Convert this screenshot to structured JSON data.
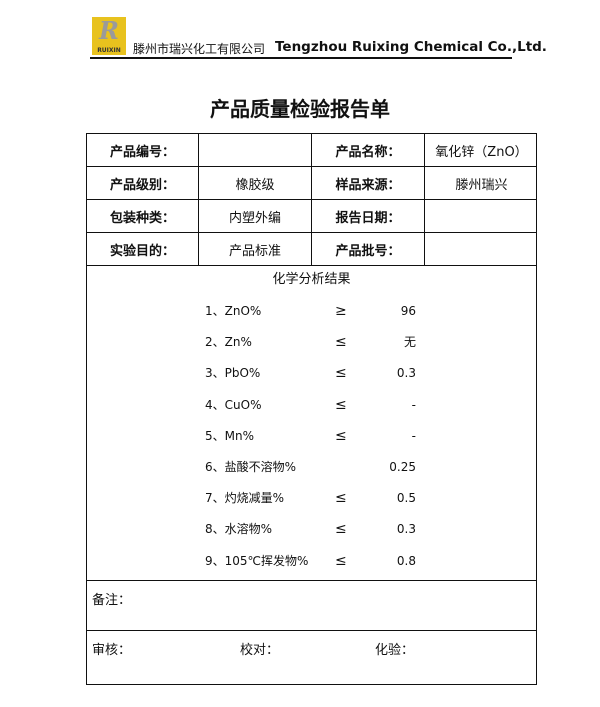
{
  "header": {
    "logo_text": "RUIXIN",
    "logo_letter": "R",
    "company_cn": "滕州市瑞兴化工有限公司",
    "company_en": "Tengzhou Ruixing Chemical Co.,Ltd."
  },
  "title": "产品质量检验报告单",
  "info_rows": [
    [
      "产品编号：",
      "",
      "产品名称：",
      "氧化锌（ZnO）"
    ],
    [
      "产品级别：",
      "橡胶级",
      "样品来源：",
      "滕州瑞兴"
    ],
    [
      "包装种类：",
      "内塑外编",
      "报告日期：",
      ""
    ],
    [
      "实验目的：",
      "产品标准",
      "产品批号：",
      ""
    ]
  ],
  "results": {
    "title": "化学分析结果",
    "items": [
      {
        "name": "1、ZnO%",
        "op": "≥",
        "value": "96"
      },
      {
        "name": "2、Zn%",
        "op": "≤",
        "value": "无"
      },
      {
        "name": "3、PbO%",
        "op": "≤",
        "value": "0.3"
      },
      {
        "name": "4、CuO%",
        "op": "≤",
        "value": "-"
      },
      {
        "name": "5、Mn%",
        "op": "≤",
        "value": "-"
      },
      {
        "name": "6、盐酸不溶物%",
        "op": "",
        "value": "0.25"
      },
      {
        "name": "7、灼烧减量%",
        "op": "≤",
        "value": "0.5"
      },
      {
        "name": "8、水溶物%",
        "op": "≤",
        "value": "0.3"
      },
      {
        "name": "9、105℃挥发物%",
        "op": "≤",
        "value": "0.8"
      }
    ]
  },
  "notes_label": "备注：",
  "signatures": {
    "review": "审核：",
    "check": "校对：",
    "test": "化验："
  }
}
